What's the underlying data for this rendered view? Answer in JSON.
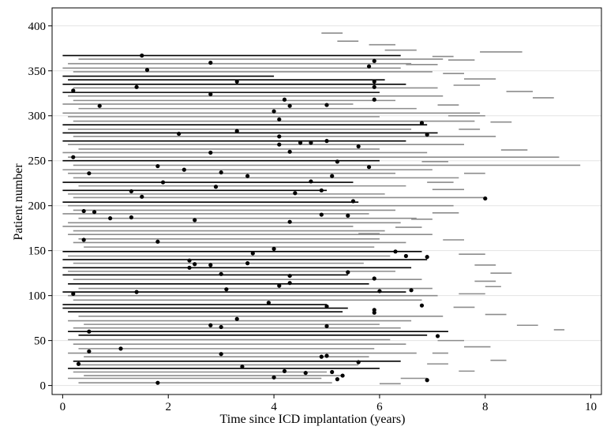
{
  "chart_data": {
    "type": "scatter",
    "xlabel": "Time since ICD implantation (years)",
    "ylabel": "Patient number",
    "xlim": [
      -0.2,
      10.2
    ],
    "ylim": [
      -10,
      420
    ],
    "xticks": [
      0,
      2,
      4,
      6,
      8,
      10
    ],
    "yticks": [
      0,
      50,
      100,
      150,
      200,
      250,
      300,
      350,
      400
    ],
    "grid": "horizontal",
    "colors": {
      "black_segment": "#000000",
      "gray_segment": "#8c8c8c",
      "event_dot": "#000000"
    },
    "intervals": [
      {
        "y": 3,
        "start": 0.3,
        "end": 5.1,
        "color": "gray"
      },
      {
        "y": 8,
        "start": 0.1,
        "end": 4.9,
        "color": "gray"
      },
      {
        "y": 11,
        "start": 0.4,
        "end": 5.3,
        "color": "gray"
      },
      {
        "y": 15,
        "start": 0.2,
        "end": 5.0,
        "color": "gray"
      },
      {
        "y": 19,
        "start": 0.1,
        "end": 6.0,
        "color": "black"
      },
      {
        "y": 23,
        "start": 0.3,
        "end": 5.6,
        "color": "gray"
      },
      {
        "y": 27,
        "start": 0.2,
        "end": 6.4,
        "color": "black"
      },
      {
        "y": 32,
        "start": 0.4,
        "end": 5.8,
        "color": "gray"
      },
      {
        "y": 36,
        "start": 0.1,
        "end": 6.7,
        "color": "gray"
      },
      {
        "y": 41,
        "start": 0.3,
        "end": 5.9,
        "color": "gray"
      },
      {
        "y": 46,
        "start": 0.2,
        "end": 6.5,
        "color": "gray"
      },
      {
        "y": 51,
        "start": 0.1,
        "end": 6.2,
        "color": "gray"
      },
      {
        "y": 56,
        "start": 0.3,
        "end": 6.9,
        "color": "black"
      },
      {
        "y": 60,
        "start": 0.1,
        "end": 7.3,
        "color": "black"
      },
      {
        "y": 64,
        "start": 0.2,
        "end": 6.4,
        "color": "gray"
      },
      {
        "y": 68,
        "start": 0.4,
        "end": 6.0,
        "color": "gray"
      },
      {
        "y": 72,
        "start": 0.1,
        "end": 6.6,
        "color": "gray"
      },
      {
        "y": 77,
        "start": 0.3,
        "end": 7.2,
        "color": "gray"
      },
      {
        "y": 82,
        "start": 0.1,
        "end": 5.3,
        "color": "black"
      },
      {
        "y": 86,
        "start": 0.0,
        "end": 5.4,
        "color": "black"
      },
      {
        "y": 90,
        "start": 0.0,
        "end": 5.0,
        "color": "black"
      },
      {
        "y": 95,
        "start": 0.2,
        "end": 6.8,
        "color": "gray"
      },
      {
        "y": 100,
        "start": 0.1,
        "end": 7.1,
        "color": "gray"
      },
      {
        "y": 104,
        "start": 0.0,
        "end": 6.5,
        "color": "black"
      },
      {
        "y": 108,
        "start": 0.3,
        "end": 7.0,
        "color": "gray"
      },
      {
        "y": 113,
        "start": 0.1,
        "end": 5.8,
        "color": "black"
      },
      {
        "y": 118,
        "start": 0.2,
        "end": 6.8,
        "color": "gray"
      },
      {
        "y": 123,
        "start": 0.0,
        "end": 5.4,
        "color": "black"
      },
      {
        "y": 127,
        "start": 0.1,
        "end": 6.3,
        "color": "gray"
      },
      {
        "y": 131,
        "start": 0.0,
        "end": 6.6,
        "color": "black"
      },
      {
        "y": 136,
        "start": 0.2,
        "end": 5.7,
        "color": "gray"
      },
      {
        "y": 140,
        "start": 0.0,
        "end": 6.9,
        "color": "black"
      },
      {
        "y": 144,
        "start": 0.1,
        "end": 6.2,
        "color": "gray"
      },
      {
        "y": 149,
        "start": 0.0,
        "end": 6.8,
        "color": "black"
      },
      {
        "y": 154,
        "start": 0.4,
        "end": 5.9,
        "color": "gray"
      },
      {
        "y": 159,
        "start": 0.2,
        "end": 6.5,
        "color": "gray"
      },
      {
        "y": 163,
        "start": 0.3,
        "end": 6.0,
        "color": "gray"
      },
      {
        "y": 168,
        "start": 0.1,
        "end": 7.0,
        "color": "gray"
      },
      {
        "y": 172,
        "start": 0.2,
        "end": 6.1,
        "color": "gray"
      },
      {
        "y": 177,
        "start": 0.0,
        "end": 5.5,
        "color": "gray"
      },
      {
        "y": 181,
        "start": 0.1,
        "end": 6.4,
        "color": "gray"
      },
      {
        "y": 186,
        "start": 0.3,
        "end": 6.7,
        "color": "gray"
      },
      {
        "y": 191,
        "start": 0.0,
        "end": 5.8,
        "color": "gray"
      },
      {
        "y": 195,
        "start": 0.2,
        "end": 6.3,
        "color": "gray"
      },
      {
        "y": 200,
        "start": 0.1,
        "end": 7.4,
        "color": "gray"
      },
      {
        "y": 204,
        "start": 0.0,
        "end": 5.6,
        "color": "black"
      },
      {
        "y": 209,
        "start": 0.2,
        "end": 8.0,
        "color": "gray"
      },
      {
        "y": 213,
        "start": 0.1,
        "end": 6.1,
        "color": "gray"
      },
      {
        "y": 217,
        "start": 0.0,
        "end": 5.0,
        "color": "black"
      },
      {
        "y": 222,
        "start": 0.3,
        "end": 6.5,
        "color": "gray"
      },
      {
        "y": 226,
        "start": 0.0,
        "end": 5.5,
        "color": "black"
      },
      {
        "y": 231,
        "start": 0.2,
        "end": 7.5,
        "color": "gray"
      },
      {
        "y": 236,
        "start": 0.1,
        "end": 6.3,
        "color": "gray"
      },
      {
        "y": 240,
        "start": 0.0,
        "end": 7.0,
        "color": "gray"
      },
      {
        "y": 245,
        "start": 0.2,
        "end": 9.8,
        "color": "gray"
      },
      {
        "y": 250,
        "start": 0.0,
        "end": 6.0,
        "color": "black"
      },
      {
        "y": 254,
        "start": 0.1,
        "end": 9.4,
        "color": "gray"
      },
      {
        "y": 259,
        "start": 0.0,
        "end": 6.9,
        "color": "gray"
      },
      {
        "y": 263,
        "start": 0.3,
        "end": 6.0,
        "color": "gray"
      },
      {
        "y": 268,
        "start": 0.1,
        "end": 7.6,
        "color": "gray"
      },
      {
        "y": 272,
        "start": 0.0,
        "end": 6.5,
        "color": "black"
      },
      {
        "y": 277,
        "start": 0.2,
        "end": 8.2,
        "color": "gray"
      },
      {
        "y": 281,
        "start": 0.0,
        "end": 7.1,
        "color": "black"
      },
      {
        "y": 285,
        "start": 0.1,
        "end": 6.6,
        "color": "gray"
      },
      {
        "y": 290,
        "start": 0.0,
        "end": 6.9,
        "color": "black"
      },
      {
        "y": 294,
        "start": 0.2,
        "end": 7.8,
        "color": "gray"
      },
      {
        "y": 299,
        "start": 0.1,
        "end": 6.0,
        "color": "gray"
      },
      {
        "y": 303,
        "start": 0.0,
        "end": 7.9,
        "color": "gray"
      },
      {
        "y": 308,
        "start": 0.3,
        "end": 6.7,
        "color": "gray"
      },
      {
        "y": 313,
        "start": 0.0,
        "end": 5.5,
        "color": "gray"
      },
      {
        "y": 317,
        "start": 0.2,
        "end": 6.3,
        "color": "gray"
      },
      {
        "y": 322,
        "start": 0.1,
        "end": 7.2,
        "color": "gray"
      },
      {
        "y": 326,
        "start": 0.0,
        "end": 6.0,
        "color": "black"
      },
      {
        "y": 331,
        "start": 0.2,
        "end": 7.1,
        "color": "gray"
      },
      {
        "y": 335,
        "start": 0.0,
        "end": 6.5,
        "color": "black"
      },
      {
        "y": 340,
        "start": 0.1,
        "end": 6.1,
        "color": "black"
      },
      {
        "y": 344,
        "start": 0.0,
        "end": 4.0,
        "color": "black"
      },
      {
        "y": 349,
        "start": 0.2,
        "end": 7.0,
        "color": "gray"
      },
      {
        "y": 353,
        "start": 0.0,
        "end": 6.4,
        "color": "gray"
      },
      {
        "y": 358,
        "start": 0.1,
        "end": 6.6,
        "color": "gray"
      },
      {
        "y": 363,
        "start": 0.3,
        "end": 7.2,
        "color": "gray"
      },
      {
        "y": 367,
        "start": 0.0,
        "end": 6.4,
        "color": "black"
      }
    ],
    "extra_segments": [
      {
        "y": 392,
        "start": 4.9,
        "end": 5.3
      },
      {
        "y": 383,
        "start": 5.2,
        "end": 5.6
      },
      {
        "y": 379,
        "start": 5.8,
        "end": 6.3
      },
      {
        "y": 373,
        "start": 6.1,
        "end": 6.7
      },
      {
        "y": 366,
        "start": 7.0,
        "end": 7.4
      },
      {
        "y": 371,
        "start": 7.9,
        "end": 8.7
      },
      {
        "y": 362,
        "start": 7.3,
        "end": 7.8
      },
      {
        "y": 357,
        "start": 6.5,
        "end": 7.1
      },
      {
        "y": 347,
        "start": 7.2,
        "end": 7.6
      },
      {
        "y": 341,
        "start": 7.6,
        "end": 8.2
      },
      {
        "y": 334,
        "start": 7.4,
        "end": 7.9
      },
      {
        "y": 327,
        "start": 8.4,
        "end": 8.9
      },
      {
        "y": 320,
        "start": 8.9,
        "end": 9.3
      },
      {
        "y": 312,
        "start": 7.1,
        "end": 7.5
      },
      {
        "y": 300,
        "start": 7.3,
        "end": 8.0
      },
      {
        "y": 293,
        "start": 8.1,
        "end": 8.5
      },
      {
        "y": 285,
        "start": 7.5,
        "end": 7.9
      },
      {
        "y": 262,
        "start": 8.3,
        "end": 8.8
      },
      {
        "y": 249,
        "start": 6.8,
        "end": 7.3
      },
      {
        "y": 236,
        "start": 7.6,
        "end": 8.0
      },
      {
        "y": 226,
        "start": 6.9,
        "end": 7.4
      },
      {
        "y": 218,
        "start": 7.0,
        "end": 7.6
      },
      {
        "y": 192,
        "start": 7.0,
        "end": 7.5
      },
      {
        "y": 185,
        "start": 6.6,
        "end": 7.0
      },
      {
        "y": 176,
        "start": 6.3,
        "end": 6.8
      },
      {
        "y": 169,
        "start": 5.6,
        "end": 6.0
      },
      {
        "y": 162,
        "start": 7.2,
        "end": 7.6
      },
      {
        "y": 146,
        "start": 7.5,
        "end": 8.0
      },
      {
        "y": 134,
        "start": 7.8,
        "end": 8.2
      },
      {
        "y": 125,
        "start": 8.1,
        "end": 8.5
      },
      {
        "y": 116,
        "start": 7.8,
        "end": 8.2
      },
      {
        "y": 110,
        "start": 8.0,
        "end": 8.3
      },
      {
        "y": 102,
        "start": 7.5,
        "end": 8.0
      },
      {
        "y": 87,
        "start": 7.4,
        "end": 7.8
      },
      {
        "y": 79,
        "start": 8.0,
        "end": 8.4
      },
      {
        "y": 67,
        "start": 8.6,
        "end": 9.0
      },
      {
        "y": 62,
        "start": 9.3,
        "end": 9.5
      },
      {
        "y": 50,
        "start": 7.1,
        "end": 7.6
      },
      {
        "y": 43,
        "start": 7.6,
        "end": 8.1
      },
      {
        "y": 36,
        "start": 7.0,
        "end": 7.3
      },
      {
        "y": 28,
        "start": 8.1,
        "end": 8.4
      },
      {
        "y": 24,
        "start": 6.9,
        "end": 7.3
      },
      {
        "y": 16,
        "start": 7.5,
        "end": 7.8
      },
      {
        "y": 8,
        "start": 6.4,
        "end": 6.9
      },
      {
        "y": 2,
        "start": 6.0,
        "end": 6.4
      }
    ],
    "events": [
      {
        "x": 1.5,
        "y": 367
      },
      {
        "x": 2.8,
        "y": 359
      },
      {
        "x": 5.9,
        "y": 361
      },
      {
        "x": 1.6,
        "y": 351
      },
      {
        "x": 5.8,
        "y": 355
      },
      {
        "x": 3.3,
        "y": 338
      },
      {
        "x": 5.9,
        "y": 338
      },
      {
        "x": 0.2,
        "y": 328
      },
      {
        "x": 1.4,
        "y": 332
      },
      {
        "x": 5.9,
        "y": 332
      },
      {
        "x": 2.8,
        "y": 324
      },
      {
        "x": 4.2,
        "y": 318
      },
      {
        "x": 5.9,
        "y": 318
      },
      {
        "x": 0.7,
        "y": 311
      },
      {
        "x": 4.3,
        "y": 311
      },
      {
        "x": 5.0,
        "y": 312
      },
      {
        "x": 4.0,
        "y": 305
      },
      {
        "x": 4.1,
        "y": 296
      },
      {
        "x": 6.8,
        "y": 292
      },
      {
        "x": 3.3,
        "y": 283
      },
      {
        "x": 2.2,
        "y": 280
      },
      {
        "x": 6.9,
        "y": 279
      },
      {
        "x": 4.1,
        "y": 277
      },
      {
        "x": 4.5,
        "y": 270
      },
      {
        "x": 4.7,
        "y": 270
      },
      {
        "x": 5.0,
        "y": 272
      },
      {
        "x": 5.6,
        "y": 266
      },
      {
        "x": 4.1,
        "y": 268
      },
      {
        "x": 2.8,
        "y": 259
      },
      {
        "x": 4.3,
        "y": 260
      },
      {
        "x": 0.2,
        "y": 254
      },
      {
        "x": 5.2,
        "y": 249
      },
      {
        "x": 1.8,
        "y": 244
      },
      {
        "x": 5.8,
        "y": 243
      },
      {
        "x": 2.3,
        "y": 240
      },
      {
        "x": 3.0,
        "y": 237
      },
      {
        "x": 0.5,
        "y": 236
      },
      {
        "x": 5.1,
        "y": 233
      },
      {
        "x": 3.5,
        "y": 233
      },
      {
        "x": 4.7,
        "y": 227
      },
      {
        "x": 1.9,
        "y": 226
      },
      {
        "x": 2.9,
        "y": 221
      },
      {
        "x": 4.9,
        "y": 217
      },
      {
        "x": 1.3,
        "y": 216
      },
      {
        "x": 4.4,
        "y": 214
      },
      {
        "x": 1.5,
        "y": 210
      },
      {
        "x": 8.0,
        "y": 208
      },
      {
        "x": 5.5,
        "y": 205
      },
      {
        "x": 0.4,
        "y": 194
      },
      {
        "x": 0.6,
        "y": 193
      },
      {
        "x": 4.9,
        "y": 190
      },
      {
        "x": 5.4,
        "y": 189
      },
      {
        "x": 0.9,
        "y": 186
      },
      {
        "x": 1.3,
        "y": 187
      },
      {
        "x": 2.5,
        "y": 184
      },
      {
        "x": 4.3,
        "y": 182
      },
      {
        "x": 0.4,
        "y": 162
      },
      {
        "x": 1.8,
        "y": 160
      },
      {
        "x": 4.0,
        "y": 152
      },
      {
        "x": 6.3,
        "y": 149
      },
      {
        "x": 3.6,
        "y": 147
      },
      {
        "x": 6.9,
        "y": 143
      },
      {
        "x": 6.5,
        "y": 144
      },
      {
        "x": 2.4,
        "y": 139
      },
      {
        "x": 3.5,
        "y": 136
      },
      {
        "x": 2.5,
        "y": 135
      },
      {
        "x": 2.8,
        "y": 134
      },
      {
        "x": 2.4,
        "y": 131
      },
      {
        "x": 5.4,
        "y": 126
      },
      {
        "x": 4.3,
        "y": 122
      },
      {
        "x": 3.0,
        "y": 124
      },
      {
        "x": 5.9,
        "y": 119
      },
      {
        "x": 4.3,
        "y": 114
      },
      {
        "x": 4.1,
        "y": 111
      },
      {
        "x": 3.1,
        "y": 107
      },
      {
        "x": 6.0,
        "y": 105
      },
      {
        "x": 6.6,
        "y": 106
      },
      {
        "x": 0.2,
        "y": 102
      },
      {
        "x": 1.4,
        "y": 104
      },
      {
        "x": 3.9,
        "y": 92
      },
      {
        "x": 6.8,
        "y": 89
      },
      {
        "x": 5.0,
        "y": 88
      },
      {
        "x": 5.9,
        "y": 84
      },
      {
        "x": 5.9,
        "y": 81
      },
      {
        "x": 3.3,
        "y": 74
      },
      {
        "x": 7.1,
        "y": 55
      },
      {
        "x": 2.8,
        "y": 67
      },
      {
        "x": 3.0,
        "y": 65
      },
      {
        "x": 5.0,
        "y": 66
      },
      {
        "x": 0.5,
        "y": 60
      },
      {
        "x": 1.1,
        "y": 41
      },
      {
        "x": 0.5,
        "y": 38
      },
      {
        "x": 3.0,
        "y": 35
      },
      {
        "x": 5.0,
        "y": 33
      },
      {
        "x": 4.9,
        "y": 32
      },
      {
        "x": 0.3,
        "y": 24
      },
      {
        "x": 3.4,
        "y": 21
      },
      {
        "x": 5.6,
        "y": 26
      },
      {
        "x": 4.2,
        "y": 16
      },
      {
        "x": 5.1,
        "y": 15
      },
      {
        "x": 4.6,
        "y": 14
      },
      {
        "x": 4.0,
        "y": 9
      },
      {
        "x": 5.3,
        "y": 11
      },
      {
        "x": 5.2,
        "y": 7
      },
      {
        "x": 6.9,
        "y": 6
      },
      {
        "x": 1.8,
        "y": 3
      }
    ]
  }
}
